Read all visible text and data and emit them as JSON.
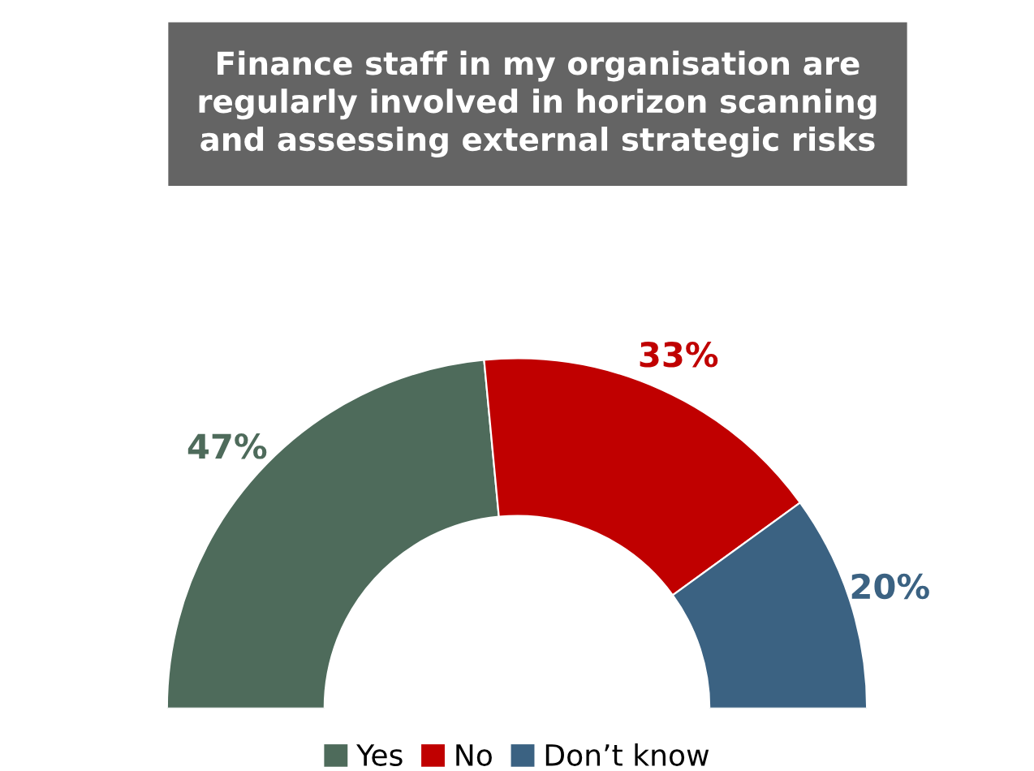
{
  "chart_data": {
    "type": "donut",
    "title": "Finance staff in my organisation are\nregularly involved in horizon scanning\nand assessing external strategic risks",
    "categories": [
      "Yes",
      "No",
      "Don’t know"
    ],
    "values": [
      47,
      33,
      20
    ],
    "colors": [
      "#4e6b5b",
      "#c00000",
      "#3b6282"
    ],
    "value_labels": [
      "47%",
      "33%",
      "20%"
    ],
    "legend": "bottom"
  }
}
